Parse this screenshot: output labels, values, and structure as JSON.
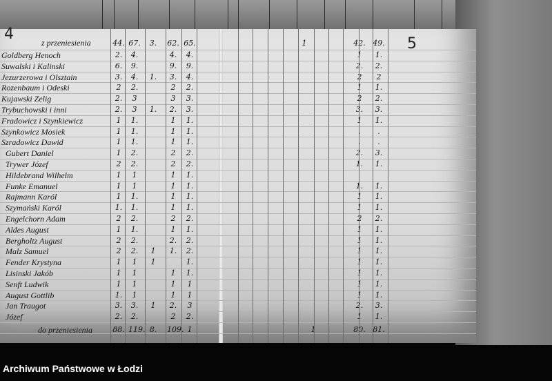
{
  "page_numbers": {
    "left": "4",
    "right": "5"
  },
  "header_label": "z przeniesienia",
  "header_values": [
    "44.",
    "67.",
    "3.",
    "62.",
    "65."
  ],
  "header_middle": "1",
  "header_right": [
    "42.",
    "49."
  ],
  "rows": [
    {
      "name": "Goldberg Henoch",
      "v": [
        "2.",
        "4.",
        "",
        "4.",
        "4."
      ],
      "r": [
        "1",
        "1."
      ]
    },
    {
      "name": "Suwalski i Kalinski",
      "v": [
        "6.",
        "9.",
        "",
        "9.",
        "9."
      ],
      "r": [
        "2.",
        "2."
      ]
    },
    {
      "name": "Jezurzerowa i Olsztain",
      "v": [
        "3.",
        "4.",
        "1.",
        "3.",
        "4."
      ],
      "r": [
        "2",
        "2"
      ]
    },
    {
      "name": "Rozenbaum i Odeski",
      "v": [
        "2",
        "2.",
        "",
        "2",
        "2."
      ],
      "r": [
        "1",
        "1."
      ]
    },
    {
      "name": "Kujawski Zelig",
      "v": [
        "2.",
        "3",
        "",
        "3",
        "3."
      ],
      "r": [
        "2",
        "2."
      ]
    },
    {
      "name": "Trybuchowski i inni",
      "v": [
        "2.",
        "3",
        "1.",
        "2.",
        "3."
      ],
      "r": [
        "3.",
        "3."
      ]
    },
    {
      "name": "Fradowicz i Szynkiewicz",
      "v": [
        "1",
        "1.",
        "",
        "1",
        "1."
      ],
      "r": [
        "1",
        "1."
      ]
    },
    {
      "name": "Szynkowicz Mosiek",
      "v": [
        "1",
        "1.",
        "",
        "1",
        "1."
      ],
      "r": [
        ".",
        "."
      ]
    },
    {
      "name": "Szradowicz Dawid",
      "v": [
        "1",
        "1.",
        "",
        "1",
        "1."
      ],
      "r": [
        ".",
        "."
      ]
    },
    {
      "name": "Gubert Daniel",
      "v": [
        "1",
        "2.",
        "",
        "2",
        "2."
      ],
      "r": [
        "2.",
        "3."
      ]
    },
    {
      "name": "Trywer Józef",
      "v": [
        "2",
        "2.",
        "",
        "2",
        "2."
      ],
      "r": [
        "1.",
        "1."
      ]
    },
    {
      "name": "Hildebrand Wilhelm",
      "v": [
        "1",
        "1",
        "",
        "1",
        "1."
      ],
      "r": [
        "",
        ""
      ]
    },
    {
      "name": "Funke Emanuel",
      "v": [
        "1",
        "1",
        "",
        "1",
        "1."
      ],
      "r": [
        "1.",
        "1."
      ]
    },
    {
      "name": "Rajmann Karól",
      "v": [
        "1",
        "1.",
        "",
        "1",
        "1."
      ],
      "r": [
        "1",
        "1."
      ]
    },
    {
      "name": "Szymański Karól",
      "v": [
        "1.",
        "1.",
        "",
        "1",
        "1."
      ],
      "r": [
        "1",
        "1."
      ]
    },
    {
      "name": "Engelchorn Adam",
      "v": [
        "2",
        "2.",
        "",
        "2",
        "2."
      ],
      "r": [
        "2",
        "2."
      ]
    },
    {
      "name": "Aldes August",
      "v": [
        "1",
        "1.",
        "",
        "1",
        "1."
      ],
      "r": [
        "1",
        "1."
      ]
    },
    {
      "name": "Bergholtz August",
      "v": [
        "2",
        "2.",
        "",
        "2.",
        "2."
      ],
      "r": [
        "1",
        "1."
      ]
    },
    {
      "name": "Malz Samuel",
      "v": [
        "2",
        "2.",
        "1",
        "1.",
        "2."
      ],
      "r": [
        "1",
        "1."
      ]
    },
    {
      "name": "Fender Krystyna",
      "v": [
        "1",
        "1",
        "1",
        "",
        "1."
      ],
      "r": [
        "1",
        "1."
      ]
    },
    {
      "name": "Lisinski Jakób",
      "v": [
        "1",
        "1",
        "",
        "1",
        "1."
      ],
      "r": [
        "1",
        "1."
      ]
    },
    {
      "name": "Senft Ludwik",
      "v": [
        "1",
        "1",
        "",
        "1",
        "1"
      ],
      "r": [
        "1",
        "1."
      ]
    },
    {
      "name": "August Gottlib",
      "v": [
        "1.",
        "1",
        "",
        "1",
        "1"
      ],
      "r": [
        "1",
        "1."
      ]
    },
    {
      "name": "Jan Traugot",
      "v": [
        "3.",
        "3.",
        "1",
        "2.",
        "3"
      ],
      "r": [
        "2.",
        "3."
      ]
    },
    {
      "name": "Józef",
      "v": [
        "2.",
        "2.",
        "",
        "2",
        "2."
      ],
      "r": [
        "1",
        "1."
      ]
    }
  ],
  "footer_label": "do przeniesienia",
  "footer_values": [
    "88.",
    "119.",
    "8.",
    "109.",
    "1"
  ],
  "footer_middle": "1",
  "footer_right": [
    "80.",
    "81."
  ],
  "caption": "Archiwum Państwowe w Łodzi"
}
